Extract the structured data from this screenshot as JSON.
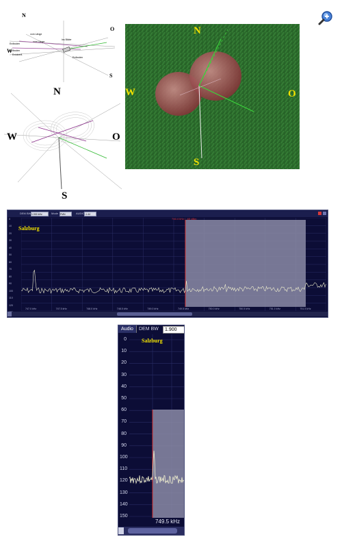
{
  "zoom_icon": "magnifier-plus-icon",
  "diagram_top": {
    "north": "N",
    "west": "W",
    "east": "O",
    "south": "S",
    "labels": [
      "vom Länge",
      "vom Länge",
      "Ins Bilder",
      "Erdboden",
      "Erdboden",
      "Erdboden",
      "Erdoberfl."
    ]
  },
  "diagram_mid": {
    "north": "N",
    "west": "W",
    "east": "O",
    "south": "S"
  },
  "green_panel": {
    "north": "N",
    "west": "W",
    "east": "O",
    "south": "S"
  },
  "sdr_wide": {
    "toolbar": {
      "dem_bw_label": "DEM BW",
      "dem_bw_value": "1.900 kHz",
      "mode_label": "Mode",
      "mode_value": "FMN",
      "audio_label": "AUDIO",
      "audio_value": "-1.44"
    },
    "marker_label": "746.4 kHz / -65 dBm",
    "station": "Salzburg",
    "y_ticks": [
      "0",
      "10",
      "20",
      "30",
      "40",
      "50",
      "60",
      "70",
      "80",
      "90",
      "100",
      "110",
      "120",
      "130"
    ],
    "x_ticks": [
      "747.0 kHz",
      "747.5 kHz",
      "748.0 kHz",
      "748.5 kHz",
      "749.0 kHz",
      "749.5 kHz",
      "750.0 kHz",
      "750.5 kHz",
      "751.0 kHz",
      "751.5 kHz"
    ],
    "colors": {
      "background": "#0c0d36",
      "trace": "#f0efcf",
      "selection": "#8b8ba6",
      "marker": "#d23030"
    }
  },
  "sdr_zoom": {
    "audio_tab": "Audio",
    "dem_bw_label": "DEM BW",
    "dem_bw_value": "1.900",
    "station": "Salzburg",
    "y_ticks": [
      "0",
      "10",
      "20",
      "30",
      "40",
      "50",
      "60",
      "70",
      "80",
      "90",
      "100",
      "110",
      "120",
      "130",
      "140",
      "150"
    ],
    "freq_label": "749.5 kHz"
  }
}
